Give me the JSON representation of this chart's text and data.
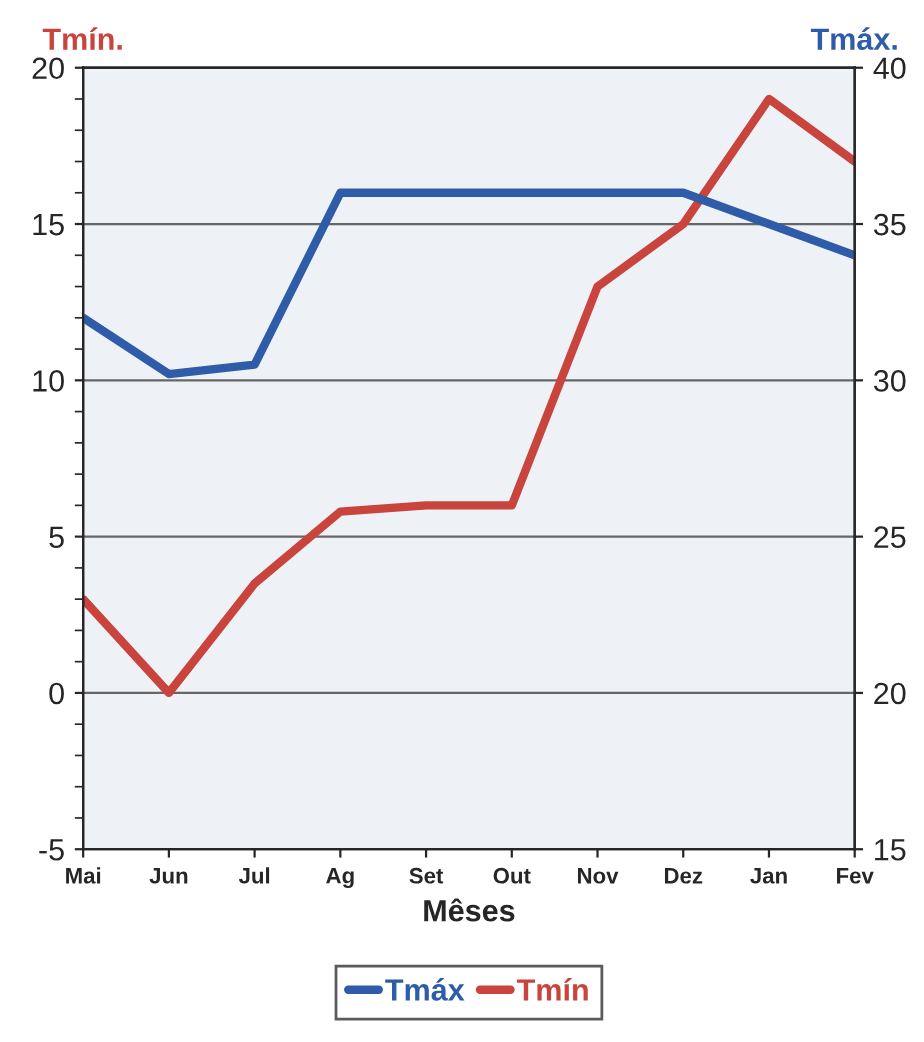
{
  "chart_data": {
    "type": "line",
    "categories": [
      "Mai",
      "Jun",
      "Jul",
      "Ag",
      "Set",
      "Out",
      "Nov",
      "Dez",
      "Jan",
      "Fev"
    ],
    "series": [
      {
        "name": "Tmáx",
        "color": "#2e5ca8",
        "axis": "y2",
        "values": [
          32,
          30.2,
          30.5,
          36,
          36,
          36,
          36,
          36,
          35,
          34
        ]
      },
      {
        "name": "Tmín",
        "color": "#c8443c",
        "values": [
          3,
          0,
          3.5,
          5.8,
          6,
          6,
          13,
          15,
          19,
          17
        ]
      }
    ],
    "xlabel": "Mêses",
    "ylabel": "Tmín.",
    "y2label": "Tmáx.",
    "ylim": [
      -5,
      20
    ],
    "yticks": [
      -5,
      0,
      5,
      10,
      15,
      20
    ],
    "y2lim": [
      15,
      40
    ],
    "y2ticks": [
      15,
      20,
      25,
      30,
      35,
      40
    ],
    "grid": "y",
    "legend": "bottom",
    "marker": "none",
    "line_style": "solid"
  }
}
